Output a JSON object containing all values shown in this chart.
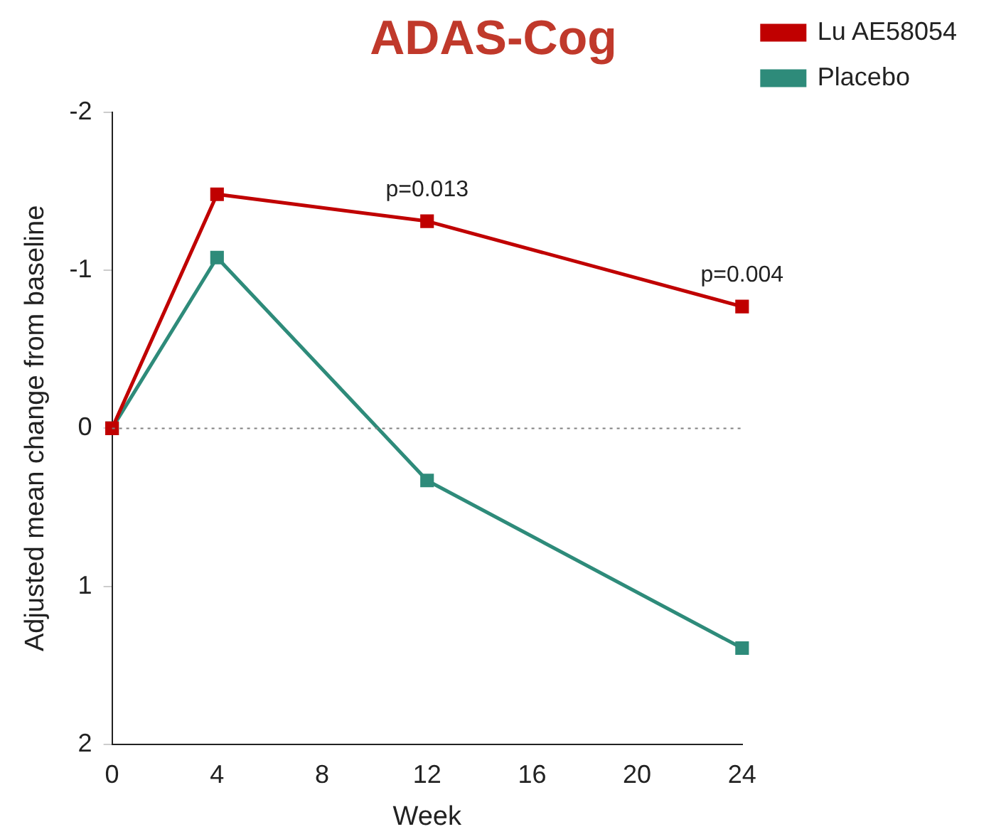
{
  "chart_data": {
    "type": "line",
    "title": "ADAS-Cog",
    "xlabel": "Week",
    "ylabel": "Adjusted mean change from baseline",
    "x": [
      0,
      4,
      12,
      24
    ],
    "series": [
      {
        "name": "Lu AE58054",
        "color": "#c00000",
        "values": [
          0,
          -1.48,
          -1.31,
          -0.77
        ]
      },
      {
        "name": "Placebo",
        "color": "#2e8b7a",
        "values": [
          0,
          -1.08,
          0.33,
          1.39
        ]
      }
    ],
    "xlim": [
      0,
      24
    ],
    "xticks": [
      0,
      4,
      8,
      12,
      16,
      20,
      24
    ],
    "ylim": [
      2,
      -2
    ],
    "yticks": [
      -2,
      -1,
      0,
      1,
      2
    ],
    "ref_lines": [
      {
        "axis": "y",
        "value": 0,
        "color": "#808080",
        "line_style": "dotted"
      }
    ],
    "annotations": [
      {
        "text": "p=0.013",
        "x": 12,
        "y": -1.31
      },
      {
        "text": "p=0.004",
        "x": 24,
        "y": -0.77
      }
    ],
    "grid": false,
    "legend": "top right",
    "marker": "square",
    "line_style": "solid"
  }
}
